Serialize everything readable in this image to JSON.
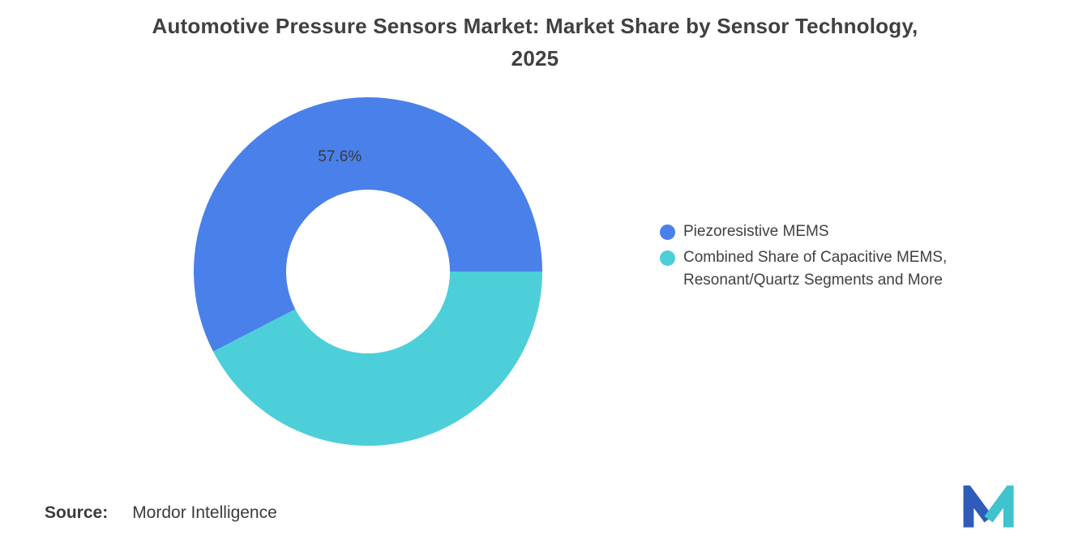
{
  "title": {
    "line1": "Automotive Pressure Sensors Market: Market Share by Sensor Technology,",
    "line2": "2025"
  },
  "chart_data": {
    "type": "pie",
    "title": "Automotive Pressure Sensors Market: Market Share by Sensor Technology, 2025",
    "donut": true,
    "inner_radius_ratio": 0.47,
    "start_angle_deg": 0,
    "direction": "counterclockwise",
    "legend_position": "right",
    "slices": [
      {
        "label": "Piezoresistive MEMS",
        "value": 57.6,
        "color": "#4A80E9",
        "data_label": "57.6%"
      },
      {
        "label": "Combined Share of Capacitive MEMS, Resonant/Quartz Segments and More",
        "value": 42.4,
        "color": "#4DCFD9",
        "data_label": ""
      }
    ]
  },
  "legend": {
    "items": [
      {
        "label": "Piezoresistive MEMS",
        "color": "#4A80E9"
      },
      {
        "label": "Combined Share of Capacitive MEMS, Resonant/Quartz Segments and More",
        "color": "#4DCFD9"
      }
    ]
  },
  "footer": {
    "source_label": "Source:",
    "source_value": "Mordor Intelligence",
    "logo_name": "mordor-intelligence-logo",
    "logo_colors": {
      "blue": "#2E5CB8",
      "teal": "#41C3CE"
    }
  }
}
